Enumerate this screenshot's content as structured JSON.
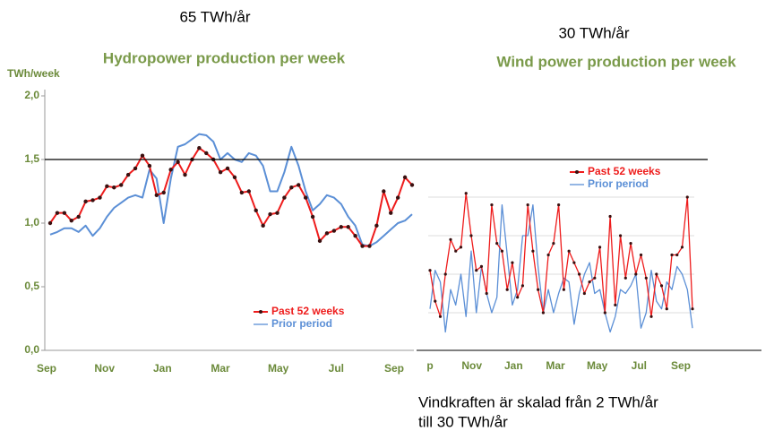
{
  "chart_data": [
    {
      "type": "line",
      "annotation": "65 TWh/år",
      "title": "Hydropower production per week",
      "unit_label": "TWh/week",
      "xtick_labels": [
        "Sep",
        "Nov",
        "Jan",
        "Mar",
        "May",
        "Jul",
        "Sep"
      ],
      "ylim": [
        0,
        2
      ],
      "yticks": [
        {
          "value": 0,
          "label": "0,0"
        },
        {
          "value": 0.5,
          "label": "0,5"
        },
        {
          "value": 1,
          "label": "1,0"
        },
        {
          "value": 1.5,
          "label": "1,5"
        },
        {
          "value": 2,
          "label": "2,0"
        }
      ],
      "series": [
        {
          "name": "Past 52 weeks",
          "color": "#ee1c1c",
          "values": [
            1.0,
            1.08,
            1.08,
            1.02,
            1.05,
            1.17,
            1.18,
            1.2,
            1.29,
            1.28,
            1.3,
            1.38,
            1.43,
            1.53,
            1.45,
            1.22,
            1.24,
            1.42,
            1.48,
            1.38,
            1.5,
            1.59,
            1.55,
            1.5,
            1.4,
            1.43,
            1.36,
            1.24,
            1.25,
            1.1,
            0.98,
            1.07,
            1.08,
            1.2,
            1.28,
            1.3,
            1.2,
            1.05,
            0.86,
            0.92,
            0.94,
            0.97,
            0.97,
            0.9,
            0.82,
            0.82,
            0.98,
            1.25,
            1.08,
            1.2,
            1.36,
            1.3
          ]
        },
        {
          "name": "Prior period",
          "color": "#5b8fd6",
          "values": [
            0.91,
            0.93,
            0.96,
            0.96,
            0.93,
            0.98,
            0.9,
            0.96,
            1.05,
            1.12,
            1.16,
            1.2,
            1.22,
            1.2,
            1.42,
            1.35,
            1.0,
            1.35,
            1.6,
            1.62,
            1.66,
            1.7,
            1.69,
            1.64,
            1.5,
            1.55,
            1.5,
            1.48,
            1.55,
            1.53,
            1.45,
            1.25,
            1.25,
            1.4,
            1.6,
            1.45,
            1.25,
            1.1,
            1.15,
            1.22,
            1.2,
            1.15,
            1.05,
            0.98,
            0.83,
            0.82,
            0.85,
            0.9,
            0.95,
            1.0,
            1.02,
            1.07
          ]
        }
      ]
    },
    {
      "type": "line",
      "annotation": "30 TWh/år",
      "title": "Wind power production per week",
      "xtick_labels": [
        "p",
        "Nov",
        "Jan",
        "Mar",
        "May",
        "Jul",
        "Sep"
      ],
      "ylim": [
        0,
        5
      ],
      "series": [
        {
          "name": "Past 52 weeks",
          "color": "#ee1c1c",
          "values": [
            2.1,
            1.3,
            0.9,
            2.0,
            2.9,
            2.6,
            2.7,
            4.1,
            3.0,
            2.1,
            2.2,
            1.5,
            3.8,
            2.8,
            2.6,
            1.6,
            2.3,
            1.4,
            1.7,
            3.8,
            2.6,
            1.6,
            1.0,
            2.5,
            2.8,
            3.8,
            1.6,
            2.6,
            2.3,
            2.0,
            1.5,
            1.8,
            1.9,
            2.7,
            1.0,
            3.5,
            1.2,
            3.0,
            1.9,
            2.8,
            2.0,
            2.5,
            1.9,
            0.9,
            2.0,
            1.7,
            1.1,
            2.5,
            2.5,
            2.7,
            4.0,
            1.1
          ]
        },
        {
          "name": "Prior period",
          "color": "#5b8fd6",
          "values": [
            1.1,
            2.1,
            1.8,
            0.5,
            1.6,
            1.2,
            2.0,
            0.9,
            2.6,
            1.0,
            2.2,
            1.5,
            1.0,
            1.4,
            3.8,
            2.5,
            1.2,
            1.6,
            3.0,
            3.0,
            3.8,
            2.2,
            1.0,
            1.6,
            1.0,
            1.5,
            1.9,
            1.8,
            0.7,
            1.5,
            2.0,
            2.3,
            1.5,
            1.6,
            1.0,
            0.5,
            0.9,
            1.6,
            1.5,
            1.7,
            2.0,
            0.6,
            1.0,
            2.1,
            1.3,
            1.1,
            1.8,
            1.6,
            2.2,
            2.0,
            1.6,
            0.6
          ]
        }
      ]
    }
  ],
  "note": [
    "Vindkraften är skalad från 2 TWh/år",
    "till 30 TWh/år"
  ]
}
